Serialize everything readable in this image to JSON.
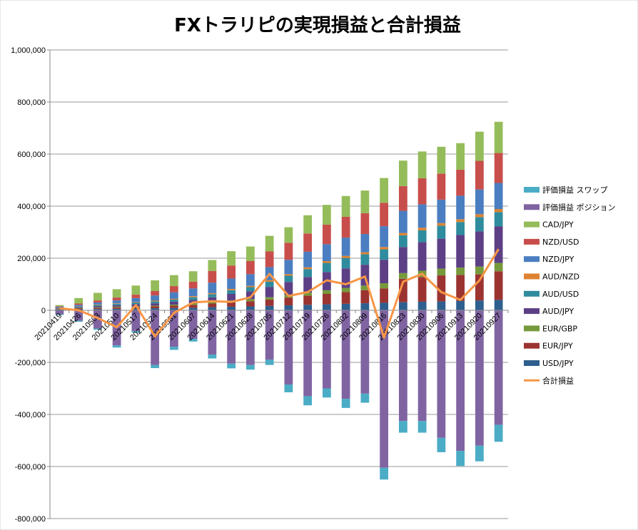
{
  "chart_data": {
    "type": "bar",
    "title": "FXトラリピの実現損益と合計損益",
    "ylim": [
      -800000,
      1000000
    ],
    "ytick_labels": [
      "1,000,000",
      "800,000",
      "600,000",
      "400,000",
      "200,000",
      "0",
      "-200,000",
      "-400,000",
      "-600,000",
      "-800,000"
    ],
    "grid": true,
    "legend_position": "right",
    "categories": [
      "20210419",
      "20210426",
      "20210503",
      "20210510",
      "20210517",
      "20210524",
      "20210531",
      "20210607",
      "20210614",
      "20210621",
      "20210628",
      "20210705",
      "20210712",
      "20210719",
      "20210726",
      "20210802",
      "20210809",
      "20210816",
      "20210823",
      "20210830",
      "20210906",
      "20210913",
      "20210920",
      "20210927"
    ],
    "series": [
      {
        "name": "USD/JPY",
        "color": "#2E5F8F",
        "values": [
          3000,
          4000,
          5000,
          6000,
          7000,
          8000,
          9000,
          10000,
          12000,
          14000,
          15000,
          17000,
          19000,
          21000,
          23000,
          25000,
          27000,
          29000,
          31000,
          33000,
          34000,
          36000,
          38000,
          40000
        ]
      },
      {
        "name": "EUR/JPY",
        "color": "#9B3431",
        "values": [
          2000,
          3000,
          4000,
          5000,
          6000,
          7000,
          9000,
          11000,
          14000,
          17000,
          20000,
          24000,
          30000,
          35000,
          40000,
          45000,
          50000,
          55000,
          90000,
          95000,
          100000,
          100000,
          100000,
          110000
        ]
      },
      {
        "name": "EUR/GBP",
        "color": "#769A3B",
        "values": [
          1000,
          2000,
          2000,
          3000,
          3000,
          3000,
          4000,
          5000,
          6000,
          7000,
          8000,
          9000,
          10000,
          12000,
          14000,
          16000,
          18000,
          20000,
          22000,
          24000,
          26000,
          28000,
          30000,
          32000
        ]
      },
      {
        "name": "AUD/JPY",
        "color": "#5D3F86",
        "values": [
          2000,
          3000,
          5000,
          6000,
          8000,
          9000,
          11000,
          14000,
          18000,
          25000,
          30000,
          40000,
          50000,
          60000,
          70000,
          75000,
          80000,
          90000,
          100000,
          110000,
          115000,
          125000,
          135000,
          140000
        ]
      },
      {
        "name": "AUD/USD",
        "color": "#2F8C9E",
        "values": [
          2000,
          3000,
          4000,
          5000,
          6000,
          7000,
          8000,
          10000,
          12000,
          14000,
          16000,
          20000,
          24000,
          30000,
          35000,
          40000,
          40000,
          40000,
          45000,
          45000,
          50000,
          50000,
          55000,
          55000
        ]
      },
      {
        "name": "AUD/NZD",
        "color": "#DD8330",
        "values": [
          1000,
          1000,
          2000,
          2000,
          2000,
          3000,
          3000,
          4000,
          4000,
          5000,
          5000,
          6000,
          6000,
          7000,
          7000,
          8000,
          8000,
          9000,
          9000,
          10000,
          10000,
          11000,
          11000,
          12000
        ]
      },
      {
        "name": "NZD/JPY",
        "color": "#4A7EC1",
        "values": [
          3000,
          5000,
          8000,
          11000,
          15000,
          20000,
          25000,
          30000,
          40000,
          40000,
          45000,
          50000,
          55000,
          60000,
          65000,
          70000,
          70000,
          80000,
          85000,
          90000,
          90000,
          90000,
          95000,
          100000
        ]
      },
      {
        "name": "NZD/USD",
        "color": "#C84E4B",
        "values": [
          2000,
          5000,
          8000,
          11000,
          13000,
          17000,
          24000,
          26000,
          45000,
          50000,
          50000,
          60000,
          65000,
          70000,
          75000,
          80000,
          80000,
          90000,
          95000,
          100000,
          100000,
          100000,
          110000,
          115000
        ]
      },
      {
        "name": "CAD/JPY",
        "color": "#95BC5A",
        "values": [
          4000,
          21000,
          29000,
          32000,
          35000,
          41000,
          42000,
          40000,
          42000,
          55000,
          56000,
          60000,
          60000,
          70000,
          76000,
          80000,
          87000,
          95000,
          98000,
          103000,
          103000,
          102000,
          112000,
          120000
        ]
      },
      {
        "name": "評価損益 ポジション",
        "color": "#8064A2",
        "values": [
          -15000,
          -40000,
          -70000,
          -135000,
          -80000,
          -210000,
          -140000,
          -110000,
          -170000,
          -205000,
          -210000,
          -190000,
          -285000,
          -330000,
          -300000,
          -340000,
          -320000,
          -605000,
          -425000,
          -425000,
          -490000,
          -540000,
          -520000,
          -440000
        ]
      },
      {
        "name": "評価損益 スワップ",
        "color": "#4BACC6",
        "values": [
          -3000,
          -4000,
          -5000,
          -8000,
          -6000,
          -12000,
          -12000,
          -10000,
          -15000,
          -18000,
          -18000,
          -20000,
          -30000,
          -35000,
          -35000,
          -35000,
          -35000,
          -45000,
          -45000,
          -45000,
          -55000,
          -58000,
          -60000,
          -65000
        ]
      }
    ],
    "line": {
      "name": "合計損益",
      "color": "#F79646",
      "values": [
        8000,
        0,
        -30000,
        -65000,
        20000,
        -100000,
        -10000,
        30000,
        35000,
        32000,
        50000,
        140000,
        55000,
        70000,
        115000,
        100000,
        130000,
        -105000,
        110000,
        140000,
        70000,
        40000,
        115000,
        235000
      ]
    },
    "legend_order": [
      "評価損益 スワップ",
      "評価損益 ポジション",
      "CAD/JPY",
      "NZD/USD",
      "NZD/JPY",
      "AUD/NZD",
      "AUD/USD",
      "AUD/JPY",
      "EUR/GBP",
      "EUR/JPY",
      "USD/JPY",
      "合計損益"
    ]
  }
}
